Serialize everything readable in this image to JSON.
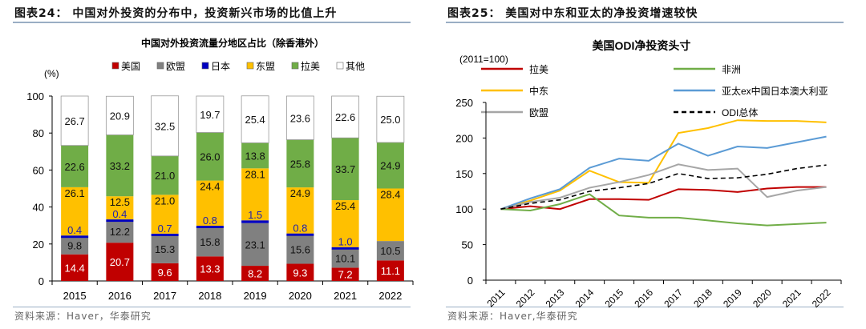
{
  "left": {
    "panel_title": "图表24：  中国对外投资的分布中，投资新兴市场的比值上升",
    "source": "资料来源：Haver，华泰研究"
  },
  "right": {
    "panel_title": "图表25：  美国对中东和亚太的净投资增速较快",
    "source": "资料来源：Haver,华泰研究"
  },
  "chart_data": [
    {
      "type": "bar",
      "stacked": true,
      "title": "中国对外投资流量分地区占比（除香港外）",
      "ylabel": "(%)",
      "ylim": [
        0,
        100
      ],
      "yticks": [
        0,
        20,
        40,
        60,
        80,
        100
      ],
      "categories": [
        "2015",
        "2016",
        "2017",
        "2018",
        "2019",
        "2020",
        "2021",
        "2022"
      ],
      "series": [
        {
          "name": "美国",
          "color": "#c00000",
          "values": [
            14.4,
            20.7,
            9.6,
            13.3,
            8.2,
            9.3,
            7.2,
            11.1
          ]
        },
        {
          "name": "欧盟",
          "color": "#808080",
          "values": [
            9.8,
            12.2,
            15.3,
            15.8,
            23.1,
            15.6,
            10.1,
            10.5
          ]
        },
        {
          "name": "日本",
          "color": "#0000c0",
          "values": [
            0.4,
            0.4,
            0.7,
            0.8,
            1.5,
            0.8,
            1.0,
            0
          ]
        },
        {
          "name": "东盟",
          "color": "#ffc000",
          "values": [
            26.1,
            12.5,
            21.0,
            24.4,
            28.1,
            24.9,
            25.4,
            28.4
          ]
        },
        {
          "name": "拉美",
          "color": "#70ad47",
          "values": [
            22.6,
            33.2,
            21.0,
            26.0,
            13.8,
            25.8,
            33.7,
            24.9
          ]
        },
        {
          "name": "其他",
          "color": "#ffffff",
          "values": [
            26.7,
            20.9,
            32.5,
            19.7,
            25.4,
            23.6,
            22.6,
            25.0
          ]
        }
      ],
      "legend": "top"
    },
    {
      "type": "line",
      "title": "美国ODI净投资头寸",
      "ylabel": "(2011=100)",
      "ylim": [
        0,
        250
      ],
      "yticks": [
        0,
        50,
        100,
        150,
        200,
        250
      ],
      "x": [
        "2011",
        "2012",
        "2013",
        "2014",
        "2015",
        "2016",
        "2017",
        "2018",
        "2019",
        "2020",
        "2021",
        "2022"
      ],
      "series": [
        {
          "name": "拉美",
          "color": "#c00000",
          "dashed": false,
          "values": [
            100,
            104,
            100,
            114,
            114,
            113,
            128,
            127,
            124,
            129,
            131,
            131
          ]
        },
        {
          "name": "非洲",
          "color": "#70ad47",
          "dashed": false,
          "values": [
            100,
            98,
            107,
            121,
            91,
            88,
            88,
            84,
            80,
            77,
            79,
            81
          ]
        },
        {
          "name": "中东",
          "color": "#ffc000",
          "dashed": false,
          "values": [
            100,
            112,
            126,
            154,
            138,
            137,
            207,
            214,
            225,
            224,
            224,
            222
          ]
        },
        {
          "name": "亚太ex中国日本澳大利亚",
          "color": "#5b9bd5",
          "dashed": false,
          "values": [
            100,
            115,
            128,
            158,
            171,
            168,
            192,
            175,
            188,
            186,
            194,
            202
          ]
        },
        {
          "name": "欧盟",
          "color": "#a6a6a6",
          "dashed": false,
          "values": [
            100,
            110,
            116,
            130,
            138,
            148,
            163,
            155,
            157,
            117,
            126,
            131
          ]
        },
        {
          "name": "ODI总体",
          "color": "#000000",
          "dashed": true,
          "values": [
            100,
            108,
            113,
            125,
            130,
            136,
            150,
            143,
            144,
            149,
            157,
            162
          ]
        }
      ],
      "legend": "top"
    }
  ]
}
